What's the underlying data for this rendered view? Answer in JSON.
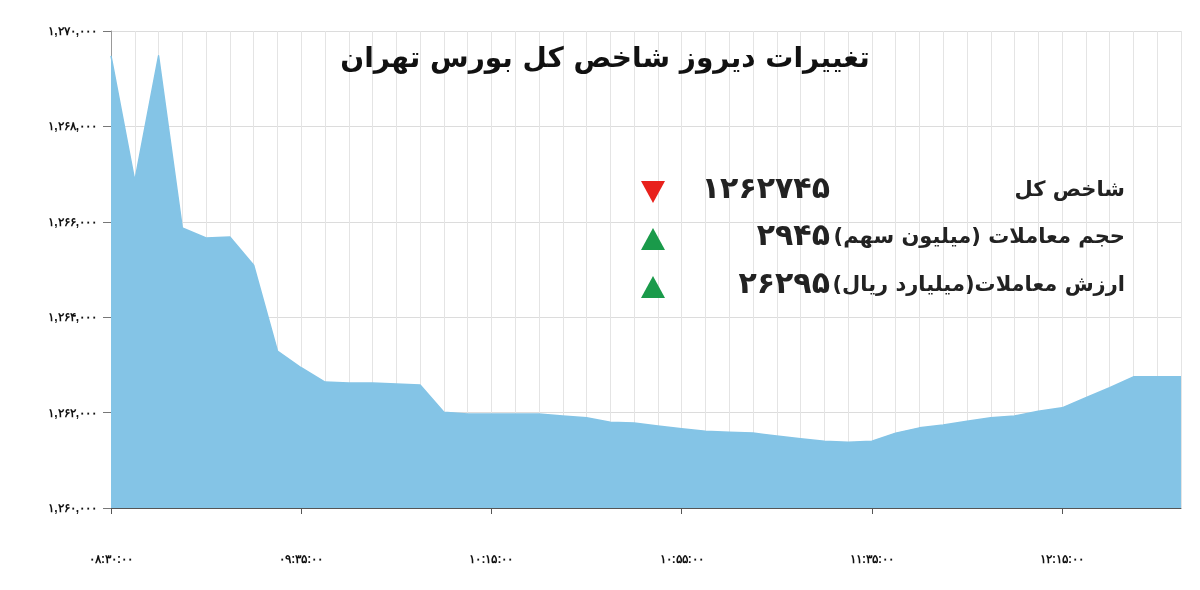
{
  "chart_data": {
    "type": "area",
    "title": "تغییرات دیروز شاخص کل بورس تهران",
    "categories": [
      "۰۸:۳۰:۰۰",
      null,
      null,
      null,
      null,
      null,
      null,
      null,
      "۰۹:۳۵:۰۰",
      null,
      null,
      null,
      null,
      null,
      null,
      null,
      "۱۰:۱۵:۰۰",
      null,
      null,
      null,
      null,
      null,
      null,
      null,
      "۱۰:۵۵:۰۰",
      null,
      null,
      null,
      null,
      null,
      null,
      null,
      "۱۱:۳۵:۰۰",
      null,
      null,
      null,
      null,
      null,
      null,
      null,
      "۱۲:۱۵:۰۰",
      null,
      null,
      null,
      null,
      null
    ],
    "values": [
      1269480,
      1266860,
      1269480,
      1265870,
      1265660,
      1265680,
      1265090,
      1263290,
      1262940,
      1262640,
      1262620,
      1262620,
      1262600,
      1262580,
      1262010,
      1261970,
      1261970,
      1261970,
      1261970,
      1261930,
      1261890,
      1261800,
      1261780,
      1261720,
      1261660,
      1261610,
      1261590,
      1261570,
      1261510,
      1261450,
      1261400,
      1261380,
      1261400,
      1261570,
      1261680,
      1261740,
      1261820,
      1261890,
      1261930,
      1262030,
      1262100,
      1262310,
      1262520,
      1262750,
      1262750,
      1262750
    ],
    "color": "#84c4e6",
    "ylim": [
      1260000,
      1270000
    ],
    "yticks": [
      {
        "value": 1260000,
        "label": "۱,۲۶۰,۰۰۰"
      },
      {
        "value": 1262000,
        "label": "۱,۲۶۲,۰۰۰"
      },
      {
        "value": 1264000,
        "label": "۱,۲۶۴,۰۰۰"
      },
      {
        "value": 1266000,
        "label": "۱,۲۶۶,۰۰۰"
      },
      {
        "value": 1268000,
        "label": "۱,۲۶۸,۰۰۰"
      },
      {
        "value": 1270000,
        "label": "۱,۲۷۰,۰۰۰"
      }
    ],
    "grid": true,
    "marker": "none",
    "annotations": [
      "شاخص کل",
      "۱۲۶۲۷۴۵",
      "حجم معاملات (میلیون سهم)",
      "۲۹۴۵",
      "ارزش معاملات(میلیارد ریال)",
      "۲۶۲۹۵"
    ]
  }
}
